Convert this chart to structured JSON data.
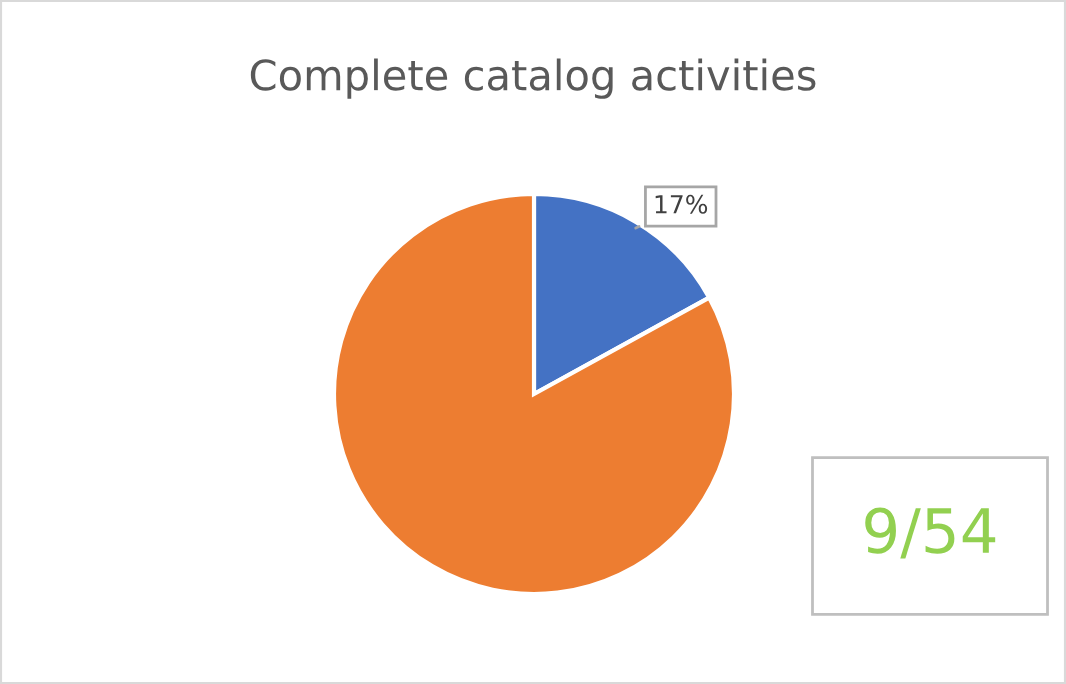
{
  "chart_data": {
    "type": "pie",
    "title": "Complete catalog activities",
    "categories": [
      null,
      null
    ],
    "values": [
      17,
      83
    ],
    "colors": [
      "#4472c4",
      "#ed7d31"
    ],
    "value_labels": [
      "17%",
      null
    ],
    "legend": false,
    "annotations": [
      "9/54"
    ]
  }
}
